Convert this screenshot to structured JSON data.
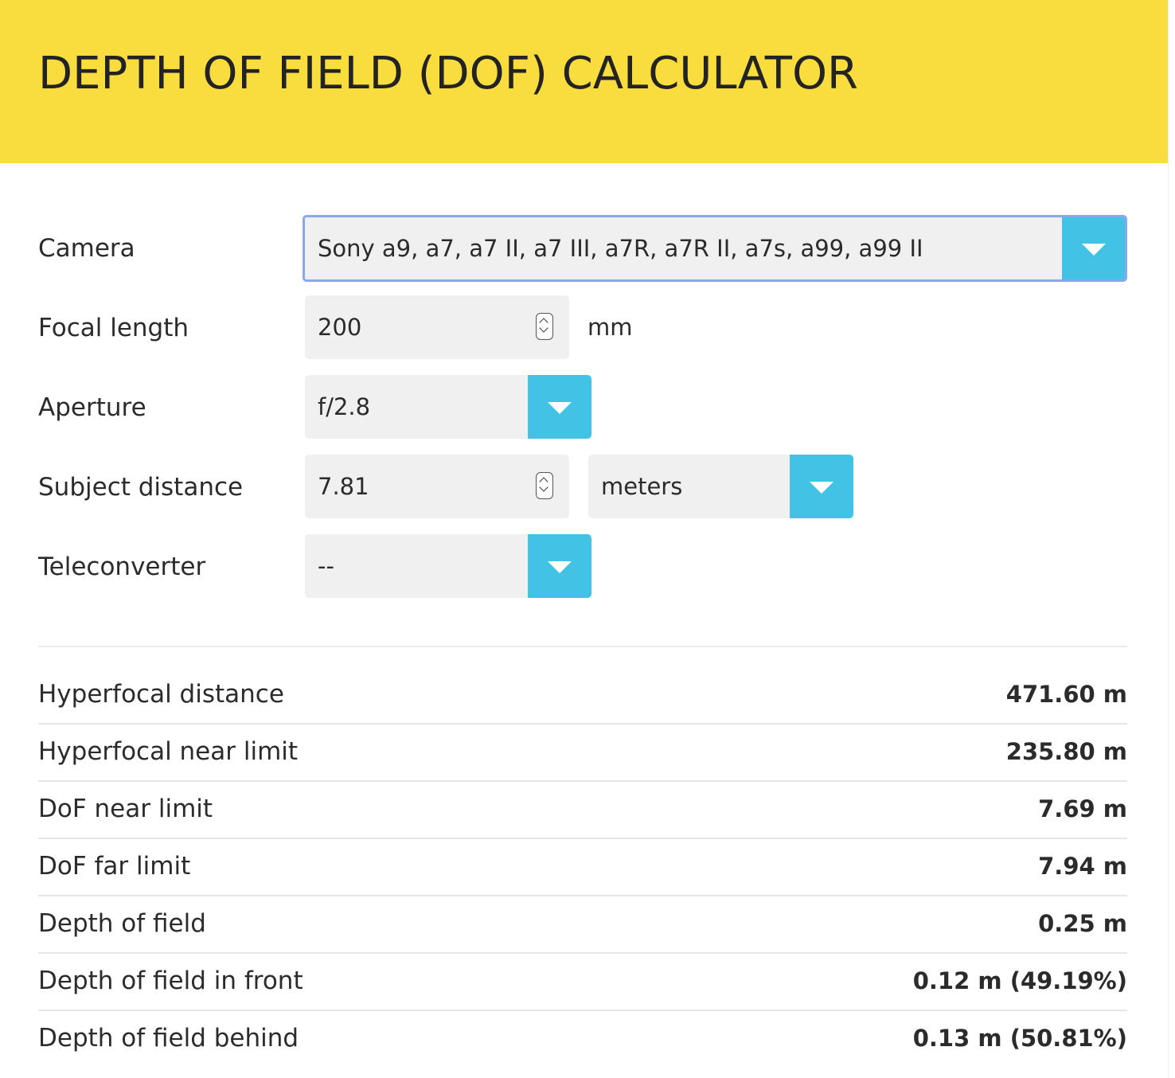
{
  "header": {
    "title": "DEPTH OF FIELD (DOF) CALCULATOR"
  },
  "form": {
    "camera": {
      "label": "Camera",
      "value": "Sony a9, a7, a7 II, a7 III, a7R, a7R II, a7s, a99, a99 II"
    },
    "focal_length": {
      "label": "Focal length",
      "value": "200",
      "unit": "mm"
    },
    "aperture": {
      "label": "Aperture",
      "value": "f/2.8"
    },
    "subject_distance": {
      "label": "Subject distance",
      "value": "7.81",
      "unit": "meters"
    },
    "teleconverter": {
      "label": "Teleconverter",
      "value": "--"
    }
  },
  "results": [
    {
      "label": "Hyperfocal distance",
      "value": "471.60 m"
    },
    {
      "label": "Hyperfocal near limit",
      "value": "235.80 m"
    },
    {
      "label": "DoF near limit",
      "value": "7.69 m"
    },
    {
      "label": "DoF far limit",
      "value": "7.94 m"
    },
    {
      "label": "Depth of field",
      "value": "0.25 m"
    },
    {
      "label": "Depth of field in front",
      "value": "0.12 m (49.19%)"
    },
    {
      "label": "Depth of field behind",
      "value": "0.13 m (50.81%)"
    }
  ],
  "colors": {
    "header_bg": "#f9dd3e",
    "dropdown_button": "#42c3e6",
    "field_bg": "#f0f0f0",
    "focus_border": "#8aa7ee"
  },
  "icons": {
    "dropdown": "caret-down-icon",
    "spinner": "number-spinner-icon"
  }
}
